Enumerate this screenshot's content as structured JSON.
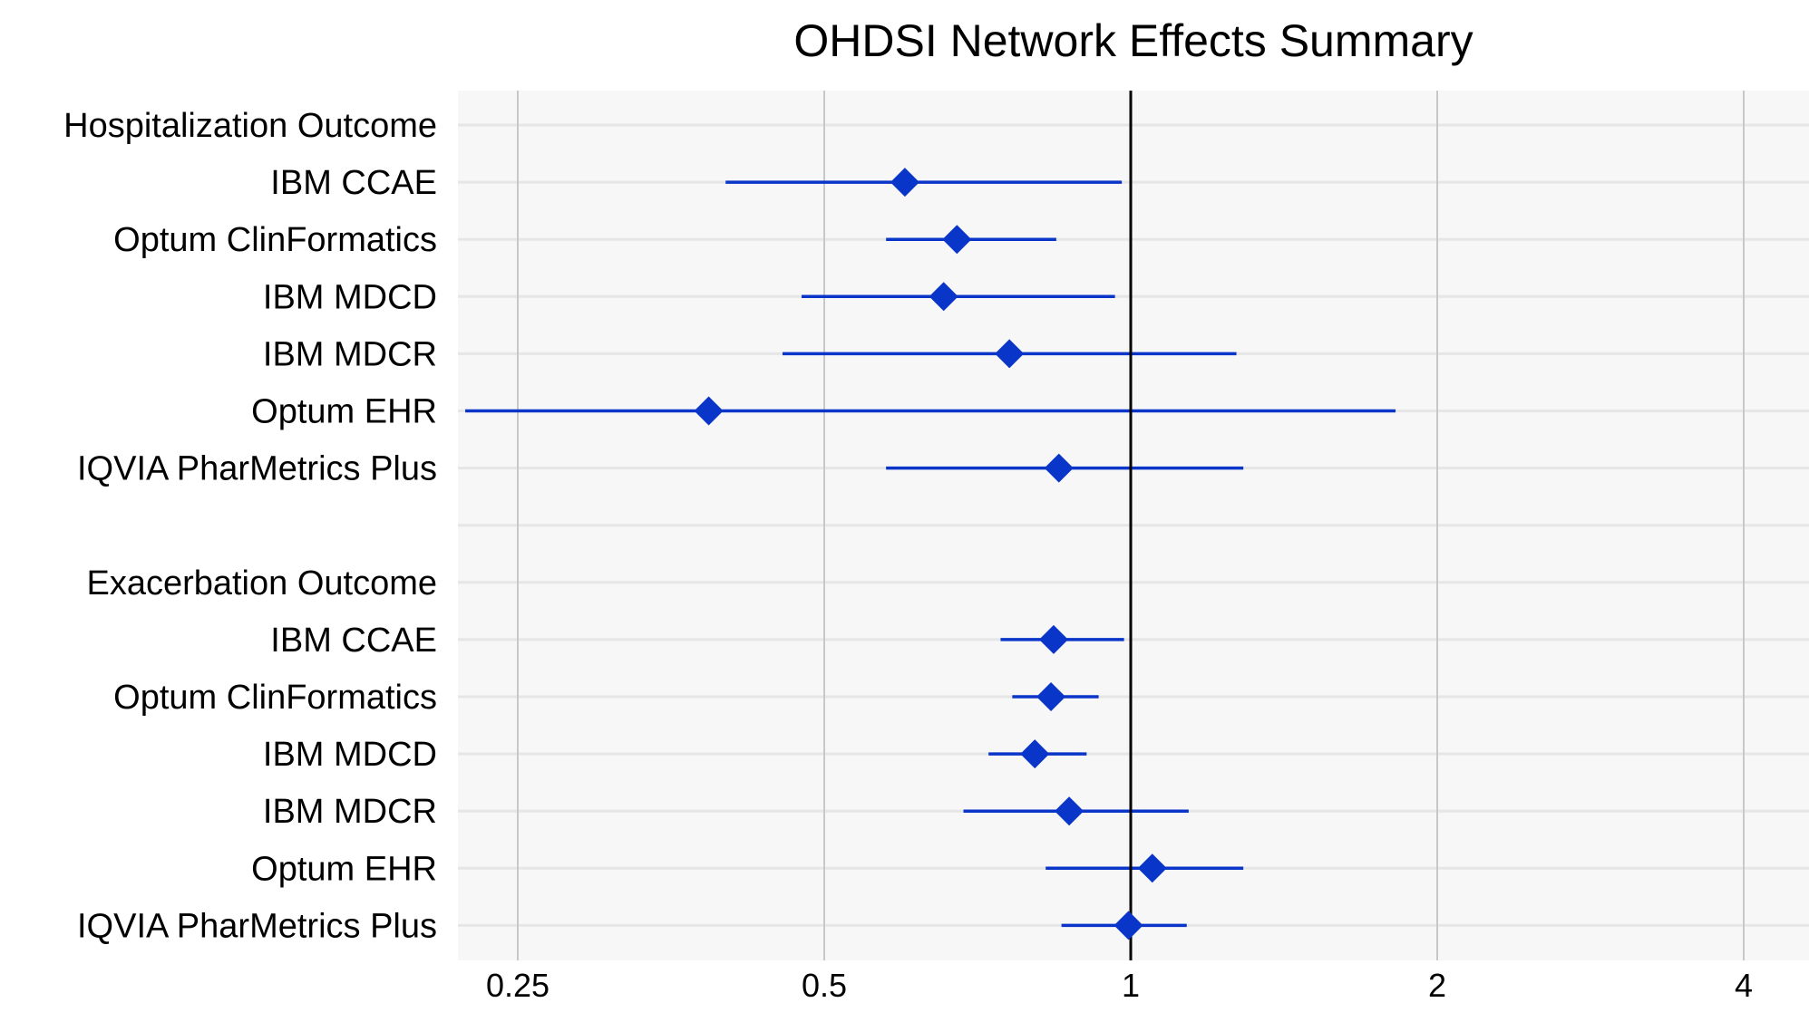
{
  "chart_data": {
    "type": "forest",
    "title": "OHDSI Network Effects Summary",
    "x_scale": "log2",
    "xlim": [
      0.22,
      4.4
    ],
    "x_ticks": [
      0.25,
      0.5,
      1,
      2,
      4
    ],
    "x_tick_labels": [
      "0.25",
      "0.5",
      "1",
      "2",
      "4"
    ],
    "reference_line": 1,
    "colors": {
      "marker": "#0a35c9",
      "ref_line": "#000000",
      "grid": "#c8c8c8",
      "panel": "#f7f7f7",
      "row_line": "#e6e6e6"
    },
    "rows": [
      {
        "label": "Hospitalization Outcome",
        "header": true
      },
      {
        "label": "IBM CCAE",
        "est": 0.6,
        "lo": 0.4,
        "hi": 0.98
      },
      {
        "label": "Optum ClinFormatics",
        "est": 0.675,
        "lo": 0.575,
        "hi": 0.845
      },
      {
        "label": "IBM MDCD",
        "est": 0.655,
        "lo": 0.475,
        "hi": 0.965
      },
      {
        "label": "IBM MDCR",
        "est": 0.76,
        "lo": 0.455,
        "hi": 1.27
      },
      {
        "label": "Optum EHR",
        "est": 0.385,
        "lo": 0.222,
        "hi": 1.82
      },
      {
        "label": "IQVIA PharMetrics Plus",
        "est": 0.85,
        "lo": 0.575,
        "hi": 1.29
      },
      {
        "label": "",
        "spacer": true
      },
      {
        "label": "Exacerbation Outcome",
        "header": true
      },
      {
        "label": "IBM CCAE",
        "est": 0.84,
        "lo": 0.745,
        "hi": 0.985
      },
      {
        "label": "Optum ClinFormatics",
        "est": 0.835,
        "lo": 0.765,
        "hi": 0.93
      },
      {
        "label": "IBM MDCD",
        "est": 0.805,
        "lo": 0.725,
        "hi": 0.905
      },
      {
        "label": "IBM MDCR",
        "est": 0.87,
        "lo": 0.685,
        "hi": 1.14
      },
      {
        "label": "Optum EHR",
        "est": 1.05,
        "lo": 0.825,
        "hi": 1.29
      },
      {
        "label": "IQVIA PharMetrics Plus",
        "est": 0.995,
        "lo": 0.855,
        "hi": 1.135
      }
    ]
  }
}
